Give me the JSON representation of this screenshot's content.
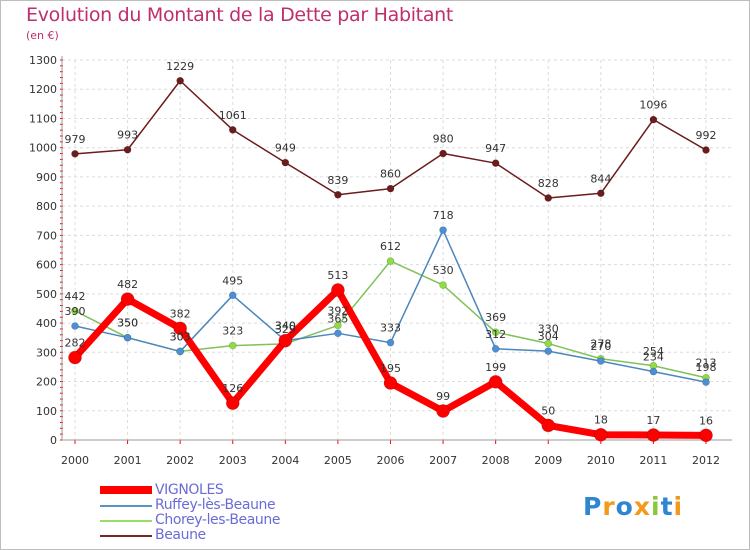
{
  "title": "Evolution du Montant de la Dette par Habitant",
  "unit_label": "(en €)",
  "logo": {
    "letters": [
      "P",
      "r",
      "o",
      "x",
      "i",
      "t",
      "i"
    ],
    "colors": [
      "#2e86d1",
      "#f39a1b",
      "#2e86d1",
      "#f39a1b",
      "#8cc63f",
      "#2e86d1",
      "#f39a1b"
    ]
  },
  "chart_data": {
    "type": "line",
    "title": "Evolution du Montant de la Dette par Habitant",
    "ylabel": "(en €)",
    "x": [
      "2000",
      "2001",
      "2002",
      "2003",
      "2004",
      "2005",
      "2006",
      "2007",
      "2008",
      "2009",
      "2010",
      "2011",
      "2012"
    ],
    "ylim": [
      0,
      1300
    ],
    "yticks": [
      0,
      100,
      200,
      300,
      400,
      500,
      600,
      700,
      800,
      900,
      1000,
      1100,
      1200,
      1300
    ],
    "grid": true,
    "legend_position": "bottom-left",
    "series": [
      {
        "name": "VIGNOLES",
        "color": "#ff0000",
        "values": [
          282,
          482,
          382,
          126,
          340,
          513,
          195,
          99,
          199,
          50,
          18,
          17,
          16
        ]
      },
      {
        "name": "Ruffey-lès-Beaune",
        "color": "#5b93c7",
        "values": [
          390,
          350,
          303,
          495,
          340,
          365,
          333,
          718,
          312,
          304,
          270,
          234,
          198
        ]
      },
      {
        "name": "Chorey-les-Beaune",
        "color": "#99dd66",
        "values": [
          442,
          350,
          303,
          323,
          329,
          392,
          612,
          530,
          369,
          330,
          278,
          254,
          213
        ]
      },
      {
        "name": "Beaune",
        "color": "#7a2626",
        "values": [
          979,
          993,
          1229,
          1061,
          949,
          839,
          860,
          980,
          947,
          828,
          844,
          1096,
          992
        ]
      }
    ]
  }
}
